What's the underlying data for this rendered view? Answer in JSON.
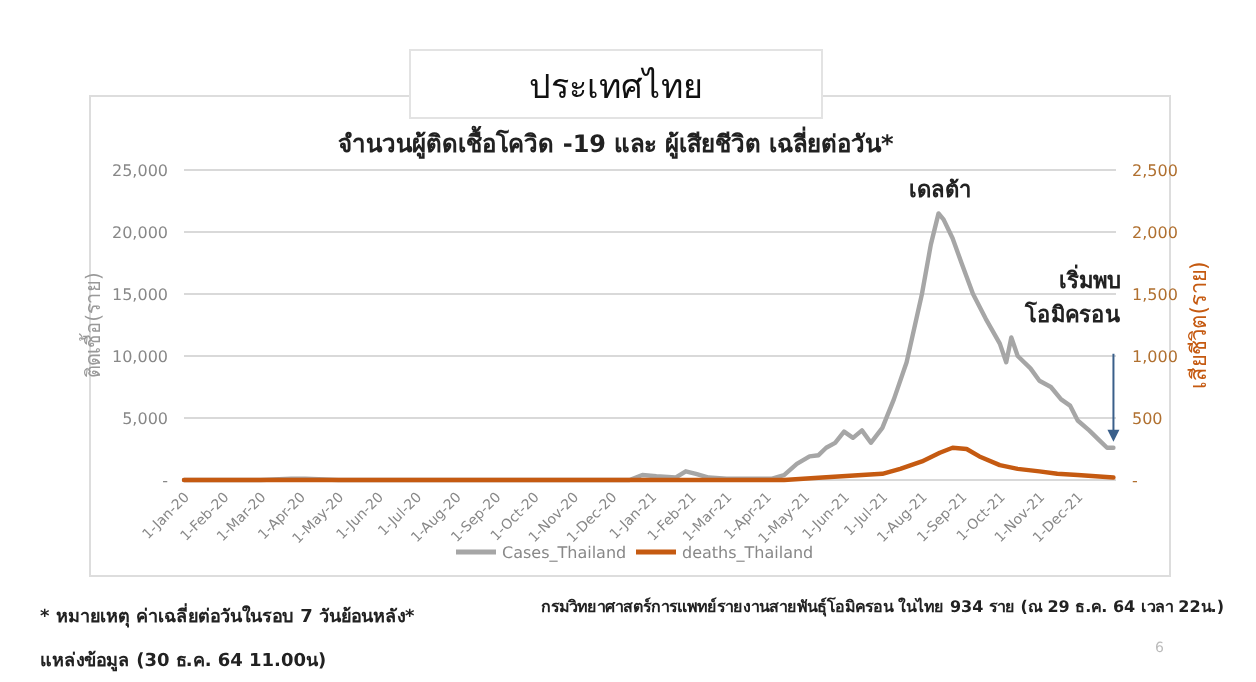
{
  "chart_data": {
    "type": "line",
    "title": "ประเทศไทย",
    "subtitle": "จำนวนผู้ติดเชื้อโควิด -19 และ ผู้เสียชีวิต เฉลี่ยต่อวัน*",
    "ylabel": "ติดเชื้อ(ราย)",
    "y2label": "เสียชีวิต(ราย)",
    "xlim": [
      "2020-01-01",
      "2021-12-31"
    ],
    "xticks": [
      {
        "value": "2020-01-01",
        "label": "1-Jan-20"
      },
      {
        "value": "2020-02-01",
        "label": "1-Feb-20"
      },
      {
        "value": "2020-03-01",
        "label": "1-Mar-20"
      },
      {
        "value": "2020-04-01",
        "label": "1-Apr-20"
      },
      {
        "value": "2020-05-01",
        "label": "1-May-20"
      },
      {
        "value": "2020-06-01",
        "label": "1-Jun-20"
      },
      {
        "value": "2020-07-01",
        "label": "1-Jul-20"
      },
      {
        "value": "2020-08-01",
        "label": "1-Aug-20"
      },
      {
        "value": "2020-09-01",
        "label": "1-Sep-20"
      },
      {
        "value": "2020-10-01",
        "label": "1-Oct-20"
      },
      {
        "value": "2020-11-01",
        "label": "1-Nov-20"
      },
      {
        "value": "2020-12-01",
        "label": "1-Dec-20"
      },
      {
        "value": "2021-01-01",
        "label": "1-Jan-21"
      },
      {
        "value": "2021-02-01",
        "label": "1-Feb-21"
      },
      {
        "value": "2021-03-01",
        "label": "1-Mar-21"
      },
      {
        "value": "2021-04-01",
        "label": "1-Apr-21"
      },
      {
        "value": "2021-05-01",
        "label": "1-May-21"
      },
      {
        "value": "2021-06-01",
        "label": "1-Jun-21"
      },
      {
        "value": "2021-07-01",
        "label": "1-Jul-21"
      },
      {
        "value": "2021-08-01",
        "label": "1-Aug-21"
      },
      {
        "value": "2021-09-01",
        "label": "1-Sep-21"
      },
      {
        "value": "2021-10-01",
        "label": "1-Oct-21"
      },
      {
        "value": "2021-11-01",
        "label": "1-Nov-21"
      },
      {
        "value": "2021-12-01",
        "label": "1-Dec-21"
      }
    ],
    "ylim": [
      0,
      25000
    ],
    "yticks": [
      {
        "value": 0,
        "label": "-"
      },
      {
        "value": 5000,
        "label": "5,000"
      },
      {
        "value": 10000,
        "label": "10,000"
      },
      {
        "value": 15000,
        "label": "15,000"
      },
      {
        "value": 20000,
        "label": "20,000"
      },
      {
        "value": 25000,
        "label": "25,000"
      }
    ],
    "y2lim": [
      0,
      2500
    ],
    "y2ticks": [
      {
        "value": 0,
        "label": "-"
      },
      {
        "value": 500,
        "label": "500"
      },
      {
        "value": 1000,
        "label": "1,000"
      },
      {
        "value": 1500,
        "label": "1,500"
      },
      {
        "value": 2000,
        "label": "2,000"
      },
      {
        "value": 2500,
        "label": "2,500"
      }
    ],
    "grid": "y",
    "legend": "bottom",
    "marker": "none",
    "series": [
      {
        "name": "Cases_Thailand",
        "color": "#a6a6a6",
        "axis": "y",
        "x": [
          "2020-01-01",
          "2020-03-01",
          "2020-03-25",
          "2020-04-05",
          "2020-05-01",
          "2020-07-01",
          "2020-10-01",
          "2020-12-15",
          "2020-12-25",
          "2021-01-05",
          "2021-01-20",
          "2021-01-28",
          "2021-02-05",
          "2021-02-15",
          "2021-03-01",
          "2021-03-20",
          "2021-04-05",
          "2021-04-15",
          "2021-04-25",
          "2021-05-05",
          "2021-05-12",
          "2021-05-18",
          "2021-05-25",
          "2021-06-01",
          "2021-06-08",
          "2021-06-15",
          "2021-06-22",
          "2021-07-01",
          "2021-07-10",
          "2021-07-20",
          "2021-08-01",
          "2021-08-08",
          "2021-08-14",
          "2021-08-18",
          "2021-08-25",
          "2021-09-01",
          "2021-09-10",
          "2021-09-20",
          "2021-10-01",
          "2021-10-06",
          "2021-10-10",
          "2021-10-15",
          "2021-10-25",
          "2021-11-01",
          "2021-11-10",
          "2021-11-18",
          "2021-11-25",
          "2021-12-01",
          "2021-12-10",
          "2021-12-18",
          "2021-12-24",
          "2021-12-29"
        ],
        "values": [
          0,
          0,
          100,
          100,
          0,
          0,
          0,
          0,
          400,
          300,
          200,
          700,
          500,
          200,
          100,
          100,
          100,
          400,
          1300,
          1900,
          2000,
          2600,
          3000,
          3900,
          3400,
          4000,
          3000,
          4200,
          6500,
          9500,
          15000,
          19000,
          21500,
          21000,
          19500,
          17500,
          15000,
          13000,
          11000,
          9500,
          11500,
          10000,
          9000,
          8000,
          7500,
          6500,
          6000,
          4800,
          4000,
          3200,
          2600,
          2600
        ]
      },
      {
        "name": "deaths_Thailand",
        "color": "#c55a11",
        "axis": "y2",
        "x": [
          "2020-01-01",
          "2020-04-05",
          "2020-06-01",
          "2021-01-01",
          "2021-04-15",
          "2021-05-15",
          "2021-06-15",
          "2021-07-01",
          "2021-07-15",
          "2021-08-01",
          "2021-08-15",
          "2021-08-25",
          "2021-09-05",
          "2021-09-15",
          "2021-10-01",
          "2021-10-15",
          "2021-11-01",
          "2021-11-15",
          "2021-12-01",
          "2021-12-15",
          "2021-12-29"
        ],
        "values": [
          0,
          0,
          0,
          0,
          0,
          20,
          40,
          50,
          90,
          150,
          220,
          260,
          250,
          190,
          120,
          90,
          70,
          50,
          40,
          30,
          20
        ]
      }
    ],
    "annotations": [
      {
        "text": "เดลต้า",
        "x": "2021-08-15",
        "y": 21500
      },
      {
        "text": "เริ่มพบ\nโอมิครอน",
        "x": "2021-12-29",
        "y": 2600
      },
      "* หมายเหตุ ค่าเฉลี่ยต่อวันในรอบ 7 วันย้อนหลัง*",
      "แหล่งข้อมูล (30 ธ.ค. 64 11.00น)",
      "กรมวิทยาศาสตร์การแพทย์รายงานสายพันธุ์โอมิครอน ในไทย 934 ราย (ณ 29 ธ.ค. 64 เวลา 22น.)",
      "6"
    ]
  }
}
